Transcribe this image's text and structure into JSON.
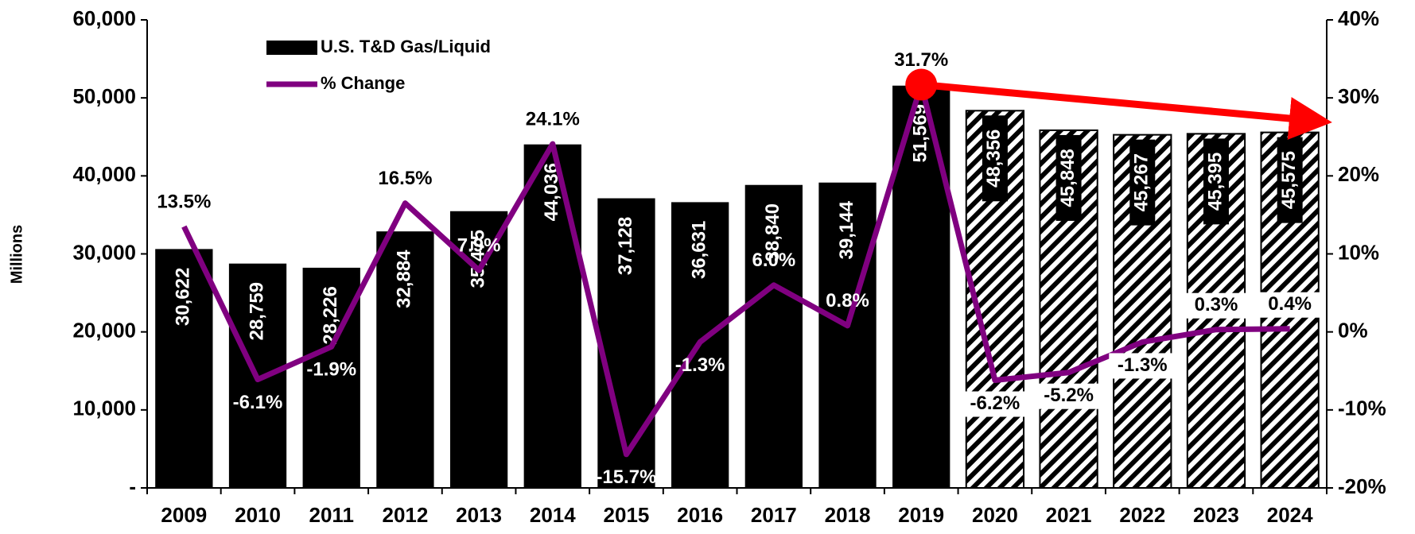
{
  "chart_data": {
    "type": "bar",
    "y_label": "Millions",
    "categories": [
      "2009",
      "2010",
      "2011",
      "2012",
      "2013",
      "2014",
      "2015",
      "2016",
      "2017",
      "2018",
      "2019",
      "2020",
      "2021",
      "2022",
      "2023",
      "2024"
    ],
    "series": [
      {
        "name": "U.S. T&D Gas/Liquid",
        "type": "bar",
        "color": "#000000",
        "pattern": [
          "solid",
          "solid",
          "solid",
          "solid",
          "solid",
          "solid",
          "solid",
          "solid",
          "solid",
          "solid",
          "solid",
          "hatch",
          "hatch",
          "hatch",
          "hatch",
          "hatch"
        ],
        "values": [
          30622,
          28759,
          28226,
          32884,
          35475,
          44036,
          37128,
          36631,
          38840,
          39144,
          51569,
          48356,
          45848,
          45267,
          45395,
          45575
        ],
        "value_labels": [
          "30,622",
          "28,759",
          "28,226",
          "32,884",
          "35,475",
          "44,036",
          "37,128",
          "36,631",
          "38,840",
          "39,144",
          "51,569",
          "48,356",
          "45,848",
          "45,267",
          "45,395",
          "45,575"
        ]
      },
      {
        "name": "% Change",
        "type": "line",
        "axis": "y2",
        "color": "#800080",
        "values": [
          13.5,
          -6.1,
          -1.9,
          16.5,
          7.9,
          24.1,
          -15.7,
          -1.3,
          6.0,
          0.8,
          31.7,
          -6.2,
          -5.2,
          -1.3,
          0.3,
          0.4
        ],
        "value_labels": [
          "13.5%",
          "-6.1%",
          "-1.9%",
          "16.5%",
          "7.9%",
          "24.1%",
          "-15.7%",
          "-1.3%",
          "6.0%",
          "0.8%",
          "31.7%",
          "-6.2%",
          "-5.2%",
          "-1.3%",
          "0.3%",
          "0.4%"
        ]
      }
    ],
    "ylim": [
      0,
      60000
    ],
    "yticks": [
      {
        "value": 0,
        "label": "-"
      },
      {
        "value": 10000,
        "label": "10,000"
      },
      {
        "value": 20000,
        "label": "20,000"
      },
      {
        "value": 30000,
        "label": "30,000"
      },
      {
        "value": 40000,
        "label": "40,000"
      },
      {
        "value": 50000,
        "label": "50,000"
      },
      {
        "value": 60000,
        "label": "60,000"
      }
    ],
    "y2lim": [
      -20,
      40
    ],
    "y2ticks": [
      {
        "value": -20,
        "label": "-20%"
      },
      {
        "value": -10,
        "label": "-10%"
      },
      {
        "value": 0,
        "label": "0%"
      },
      {
        "value": 10,
        "label": "10%"
      },
      {
        "value": 20,
        "label": "20%"
      },
      {
        "value": 30,
        "label": "30%"
      },
      {
        "value": 40,
        "label": "40%"
      }
    ],
    "legend": "top-left"
  }
}
